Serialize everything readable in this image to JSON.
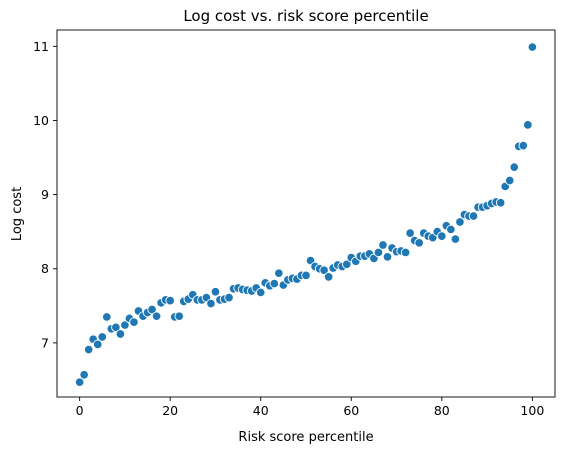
{
  "chart_data": {
    "type": "scatter",
    "title": "Log cost vs. risk score percentile",
    "xlabel": "Risk score percentile",
    "ylabel": "Log cost",
    "xlim": [
      -5,
      105
    ],
    "ylim": [
      6.27,
      11.22
    ],
    "x_ticks": [
      0,
      20,
      40,
      60,
      80,
      100
    ],
    "y_ticks": [
      7,
      8,
      9,
      10,
      11
    ],
    "grid": false,
    "legend": "none",
    "marker_color": "#1f77b4",
    "marker_edge_color": "#ffffff",
    "x": [
      0,
      1,
      2,
      3,
      4,
      5,
      6,
      7,
      8,
      9,
      10,
      11,
      12,
      13,
      14,
      15,
      16,
      17,
      18,
      19,
      20,
      21,
      22,
      23,
      24,
      25,
      26,
      27,
      28,
      29,
      30,
      31,
      32,
      33,
      34,
      35,
      36,
      37,
      38,
      39,
      40,
      41,
      42,
      43,
      44,
      45,
      46,
      47,
      48,
      49,
      50,
      51,
      52,
      53,
      54,
      55,
      56,
      57,
      58,
      59,
      60,
      61,
      62,
      63,
      64,
      65,
      66,
      67,
      68,
      69,
      70,
      71,
      72,
      73,
      74,
      75,
      76,
      77,
      78,
      79,
      80,
      81,
      82,
      83,
      84,
      85,
      86,
      87,
      88,
      89,
      90,
      91,
      92,
      93,
      94,
      95,
      96,
      97,
      98,
      99,
      100
    ],
    "y": [
      6.47,
      6.57,
      6.91,
      7.05,
      6.98,
      7.08,
      7.35,
      7.19,
      7.21,
      7.12,
      7.24,
      7.33,
      7.28,
      7.43,
      7.36,
      7.41,
      7.45,
      7.36,
      7.54,
      7.58,
      7.57,
      7.35,
      7.36,
      7.56,
      7.59,
      7.65,
      7.58,
      7.58,
      7.61,
      7.53,
      7.69,
      7.58,
      7.59,
      7.61,
      7.73,
      7.74,
      7.72,
      7.71,
      7.7,
      7.74,
      7.68,
      7.81,
      7.77,
      7.8,
      7.94,
      7.78,
      7.85,
      7.87,
      7.86,
      7.91,
      7.91,
      8.11,
      8.03,
      8.0,
      7.98,
      7.89,
      8.01,
      8.05,
      8.03,
      8.06,
      8.15,
      8.1,
      8.17,
      8.17,
      8.2,
      8.14,
      8.22,
      8.32,
      8.16,
      8.28,
      8.23,
      8.24,
      8.22,
      8.48,
      8.38,
      8.35,
      8.48,
      8.44,
      8.42,
      8.5,
      8.44,
      8.58,
      8.53,
      8.4,
      8.63,
      8.73,
      8.71,
      8.71,
      8.83,
      8.83,
      8.85,
      8.88,
      8.9,
      8.89,
      9.11,
      9.19,
      9.37,
      9.65,
      9.66,
      9.94,
      10.99
    ]
  }
}
